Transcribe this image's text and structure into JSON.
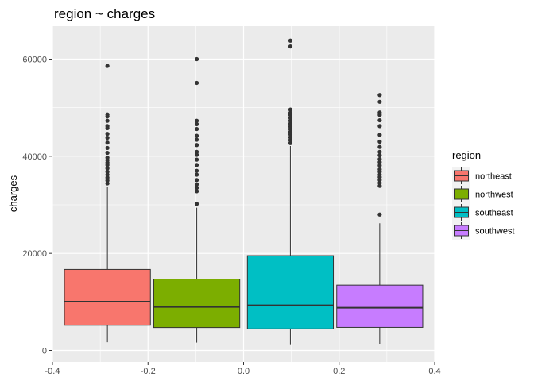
{
  "chart_data": {
    "type": "boxplot",
    "title": "region  ~ charges",
    "xlabel": "",
    "ylabel": "charges",
    "xlim": [
      -0.4,
      0.4
    ],
    "ylim": [
      0,
      65000
    ],
    "x_ticks": [
      "-0.4",
      "-0.2",
      "0.0",
      "0.2",
      "0.4"
    ],
    "x_tick_values": [
      -0.4,
      -0.2,
      0.0,
      0.2,
      0.4
    ],
    "y_ticks": [
      "0",
      "20000",
      "40000",
      "60000"
    ],
    "y_tick_values": [
      0,
      20000,
      40000,
      60000
    ],
    "grid": true,
    "legend": {
      "title": "region",
      "position": "right"
    },
    "groups": [
      {
        "name": "northeast",
        "color": "#F8766D",
        "x_range": [
          -0.375,
          -0.195
        ],
        "whisker_low": 1694,
        "q1": 5194,
        "median": 10058,
        "q3": 16688,
        "whisker_high": 33733,
        "outliers": [
          34400,
          35000,
          35600,
          36200,
          36800,
          37500,
          38200,
          38700,
          39200,
          39700,
          40700,
          41700,
          42800,
          43800,
          44600,
          45800,
          46200,
          47300,
          48200,
          48600,
          58600
        ]
      },
      {
        "name": "northwest",
        "color": "#7CAE00",
        "x_range": [
          -0.188,
          -0.008
        ],
        "whisker_low": 1621,
        "q1": 4720,
        "median": 8966,
        "q3": 14712,
        "whisker_high": 29400,
        "outliers": [
          30200,
          32800,
          33500,
          34200,
          35100,
          36200,
          37000,
          38200,
          39300,
          40300,
          40900,
          42300,
          43400,
          44200,
          45600,
          46600,
          47300,
          55100,
          60000
        ]
      },
      {
        "name": "southeast",
        "color": "#00BFC4",
        "x_range": [
          0.008,
          0.188
        ],
        "whisker_low": 1122,
        "q1": 4441,
        "median": 9294,
        "q3": 19526,
        "whisker_high": 42100,
        "outliers": [
          42700,
          43300,
          43900,
          44500,
          45000,
          45600,
          46100,
          46700,
          47300,
          47900,
          48500,
          48900,
          49600,
          62600,
          63800
        ]
      },
      {
        "name": "southwest",
        "color": "#C77CFF",
        "x_range": [
          0.195,
          0.375
        ],
        "whisker_low": 1242,
        "q1": 4751,
        "median": 8799,
        "q3": 13463,
        "whisker_high": 26200,
        "outliers": [
          28000,
          33900,
          34500,
          35100,
          35700,
          36200,
          36800,
          37300,
          38100,
          38800,
          39400,
          40200,
          40900,
          41900,
          43000,
          44400,
          46200,
          47400,
          48500,
          49000,
          51200,
          52600
        ]
      }
    ]
  }
}
